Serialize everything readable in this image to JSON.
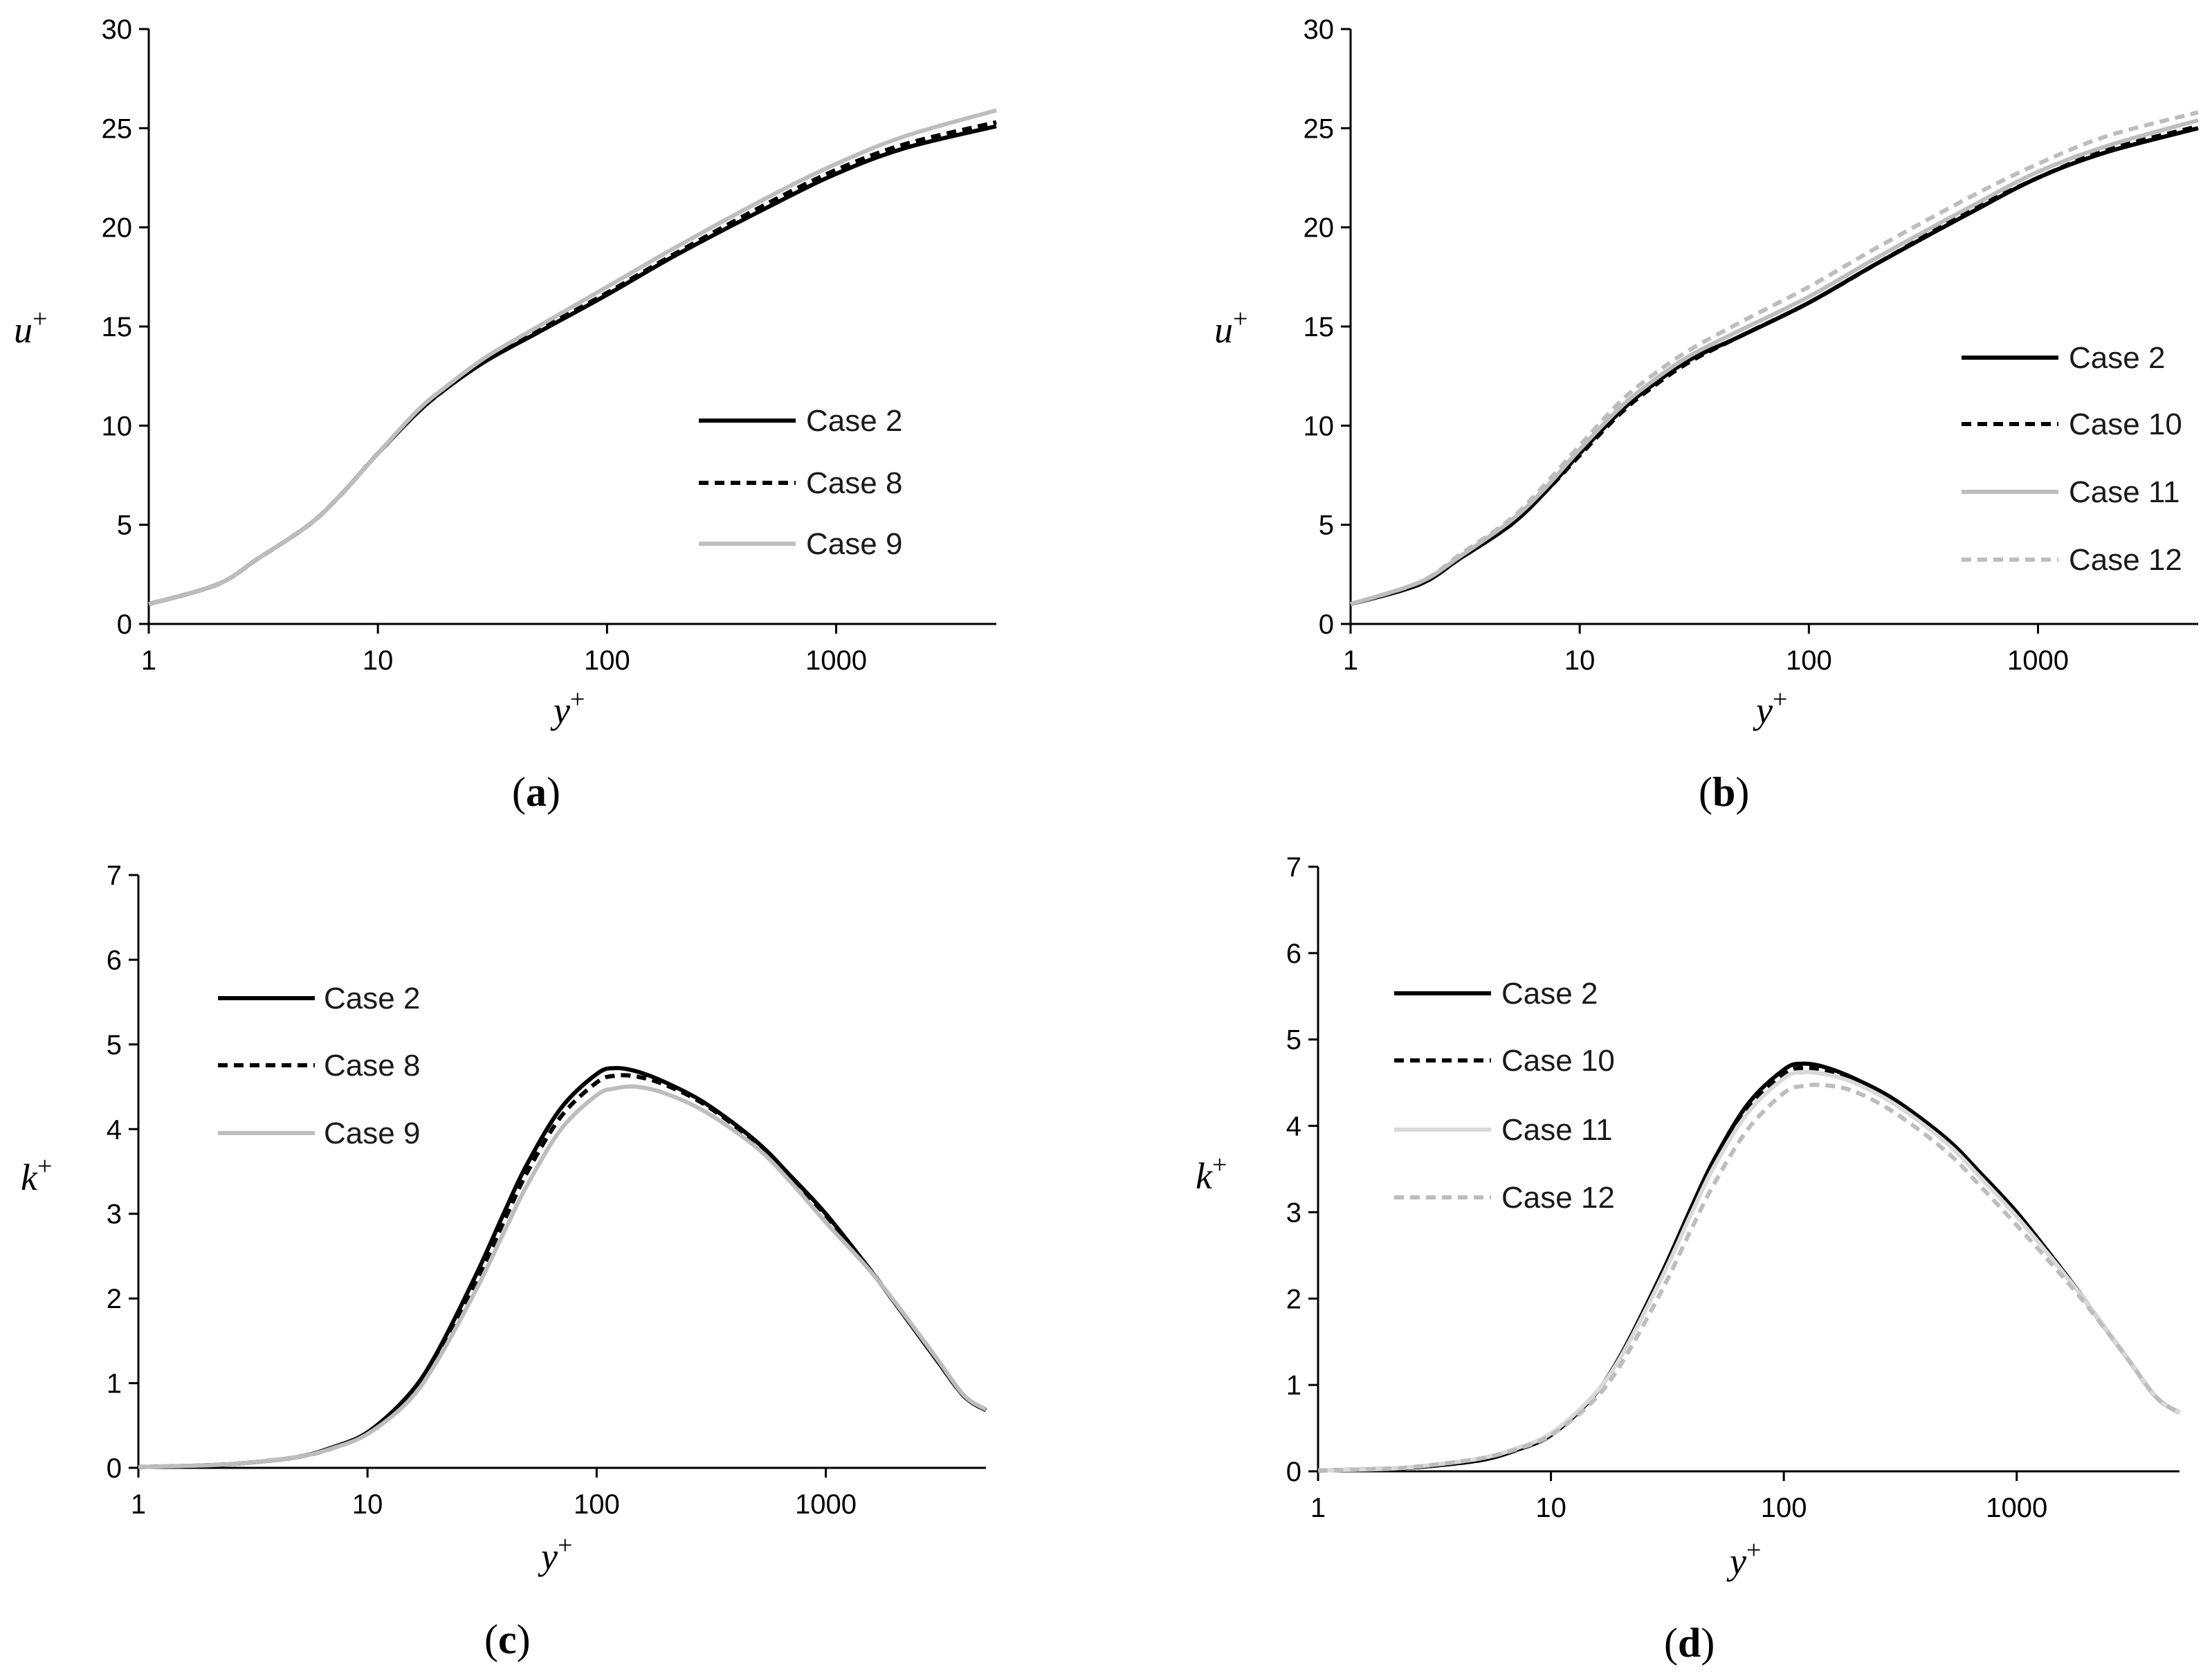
{
  "figure": {
    "panels": [
      "a",
      "b",
      "c",
      "d"
    ]
  },
  "colors": {
    "black": "#000000",
    "gray": "#bdbdbd",
    "light_gray": "#d9d9d9"
  },
  "chart_data": [
    {
      "id": "a",
      "type": "line",
      "panel_label": {
        "open": "(",
        "letter": "a",
        "close": ")"
      },
      "xlabel": {
        "main": "y",
        "sup": "+"
      },
      "ylabel": {
        "main": "u",
        "sup": "+"
      },
      "xscale": "log",
      "xlim": [
        1,
        5000
      ],
      "ylim": [
        0,
        30
      ],
      "xticks": [
        "1",
        "10",
        "100",
        "1000"
      ],
      "xtick_values": [
        1,
        10,
        100,
        1000
      ],
      "yticks": [
        "0",
        "5",
        "10",
        "15",
        "20",
        "25",
        "30"
      ],
      "ytick_values": [
        0,
        5,
        10,
        15,
        20,
        25,
        30
      ],
      "legend_position": "center-right",
      "series": [
        {
          "name": "Case 2",
          "color": "#000000",
          "dash": "solid",
          "x": [
            1,
            2,
            3,
            5,
            7,
            10,
            15,
            20,
            30,
            50,
            100,
            200,
            500,
            1000,
            2000,
            5000
          ],
          "y": [
            1.0,
            2.0,
            3.3,
            5.0,
            6.6,
            8.6,
            10.7,
            11.9,
            13.3,
            14.7,
            16.6,
            18.6,
            21.0,
            22.7,
            24.0,
            25.1
          ]
        },
        {
          "name": "Case 8",
          "color": "#000000",
          "dash": "dashed",
          "x": [
            1,
            2,
            3,
            5,
            7,
            10,
            15,
            20,
            30,
            50,
            100,
            200,
            500,
            1000,
            2000,
            5000
          ],
          "y": [
            1.0,
            2.0,
            3.3,
            5.0,
            6.6,
            8.6,
            10.7,
            11.9,
            13.4,
            14.8,
            16.7,
            18.7,
            21.2,
            22.9,
            24.2,
            25.3
          ]
        },
        {
          "name": "Case 9",
          "color": "#bdbdbd",
          "dash": "solid",
          "x": [
            1,
            2,
            3,
            5,
            7,
            10,
            15,
            20,
            30,
            50,
            100,
            200,
            500,
            1000,
            2000,
            5000
          ],
          "y": [
            1.0,
            2.0,
            3.3,
            5.0,
            6.6,
            8.6,
            10.8,
            12.0,
            13.5,
            15.0,
            17.0,
            19.0,
            21.5,
            23.2,
            24.6,
            25.9
          ]
        }
      ]
    },
    {
      "id": "b",
      "type": "line",
      "panel_label": {
        "open": "(",
        "letter": "b",
        "close": ")"
      },
      "xlabel": {
        "main": "y",
        "sup": "+"
      },
      "ylabel": {
        "main": "u",
        "sup": "+"
      },
      "xscale": "log",
      "xlim": [
        1,
        5000
      ],
      "ylim": [
        0,
        30
      ],
      "xticks": [
        "1",
        "10",
        "100",
        "1000"
      ],
      "xtick_values": [
        1,
        10,
        100,
        1000
      ],
      "yticks": [
        "0",
        "5",
        "10",
        "15",
        "20",
        "25",
        "30"
      ],
      "ytick_values": [
        0,
        5,
        10,
        15,
        20,
        25,
        30
      ],
      "legend_position": "right",
      "series": [
        {
          "name": "Case 2",
          "color": "#000000",
          "dash": "solid",
          "x": [
            1,
            2,
            3,
            5,
            7,
            10,
            15,
            20,
            30,
            50,
            100,
            200,
            500,
            1000,
            2000,
            5000
          ],
          "y": [
            1.0,
            2.0,
            3.3,
            5.0,
            6.6,
            8.6,
            10.7,
            11.9,
            13.3,
            14.5,
            16.2,
            18.2,
            20.7,
            22.5,
            23.8,
            25.0
          ]
        },
        {
          "name": "Case 10",
          "color": "#000000",
          "dash": "dashed",
          "x": [
            1,
            2,
            3,
            5,
            7,
            10,
            15,
            20,
            30,
            50,
            100,
            200,
            500,
            1000,
            2000,
            5000
          ],
          "y": [
            1.0,
            2.0,
            3.3,
            5.0,
            6.6,
            8.5,
            10.6,
            11.8,
            13.2,
            14.5,
            16.2,
            18.2,
            20.8,
            22.5,
            23.9,
            25.1
          ]
        },
        {
          "name": "Case 11",
          "color": "#bdbdbd",
          "dash": "solid",
          "x": [
            1,
            2,
            3,
            5,
            7,
            10,
            15,
            20,
            30,
            50,
            100,
            200,
            500,
            1000,
            2000,
            5000
          ],
          "y": [
            1.0,
            2.1,
            3.4,
            5.2,
            6.8,
            8.8,
            10.9,
            12.1,
            13.5,
            14.8,
            16.5,
            18.5,
            21.0,
            22.8,
            24.1,
            25.4
          ]
        },
        {
          "name": "Case 12",
          "color": "#bdbdbd",
          "dash": "dashed",
          "x": [
            1,
            2,
            3,
            5,
            7,
            10,
            15,
            20,
            30,
            50,
            100,
            200,
            500,
            1000,
            2000,
            5000
          ],
          "y": [
            1.0,
            2.1,
            3.5,
            5.3,
            7.0,
            9.0,
            11.2,
            12.4,
            13.8,
            15.2,
            17.0,
            19.0,
            21.5,
            23.2,
            24.6,
            25.8
          ]
        }
      ]
    },
    {
      "id": "c",
      "type": "line",
      "panel_label": {
        "open": "(",
        "letter": "c",
        "close": ")"
      },
      "xlabel": {
        "main": "y",
        "sup": "+"
      },
      "ylabel": {
        "main": "k",
        "sup": "+"
      },
      "xscale": "log",
      "xlim": [
        1,
        5000
      ],
      "ylim": [
        0,
        7
      ],
      "xticks": [
        "1",
        "10",
        "100",
        "1000"
      ],
      "xtick_values": [
        1,
        10,
        100,
        1000
      ],
      "yticks": [
        "0",
        "1",
        "2",
        "3",
        "4",
        "5",
        "6",
        "7"
      ],
      "ytick_values": [
        0,
        1,
        2,
        3,
        4,
        5,
        6,
        7
      ],
      "legend_position": "top-left",
      "series": [
        {
          "name": "Case 2",
          "color": "#000000",
          "dash": "solid",
          "x": [
            1,
            2,
            3,
            5,
            7,
            10,
            15,
            20,
            30,
            40,
            50,
            70,
            100,
            120,
            150,
            200,
            300,
            500,
            700,
            1000,
            1500,
            2000,
            3000,
            4000,
            5000
          ],
          "y": [
            0.01,
            0.03,
            0.06,
            0.13,
            0.24,
            0.42,
            0.85,
            1.35,
            2.3,
            3.05,
            3.6,
            4.25,
            4.65,
            4.72,
            4.68,
            4.55,
            4.3,
            3.85,
            3.45,
            3.0,
            2.4,
            1.95,
            1.3,
            0.85,
            0.68
          ]
        },
        {
          "name": "Case 8",
          "color": "#000000",
          "dash": "dashed",
          "x": [
            1,
            2,
            3,
            5,
            7,
            10,
            15,
            20,
            30,
            40,
            50,
            70,
            100,
            120,
            150,
            200,
            300,
            500,
            700,
            1000,
            1500,
            2000,
            3000,
            4000,
            5000
          ],
          "y": [
            0.01,
            0.03,
            0.06,
            0.13,
            0.23,
            0.41,
            0.82,
            1.3,
            2.22,
            2.95,
            3.5,
            4.15,
            4.55,
            4.63,
            4.62,
            4.52,
            4.28,
            3.83,
            3.43,
            2.98,
            2.4,
            1.95,
            1.3,
            0.85,
            0.68
          ]
        },
        {
          "name": "Case 9",
          "color": "#bdbdbd",
          "dash": "solid",
          "x": [
            1,
            2,
            3,
            5,
            7,
            10,
            15,
            20,
            30,
            40,
            50,
            70,
            100,
            120,
            150,
            200,
            300,
            500,
            700,
            1000,
            1500,
            2000,
            3000,
            4000,
            5000
          ],
          "y": [
            0.01,
            0.03,
            0.06,
            0.13,
            0.23,
            0.4,
            0.78,
            1.25,
            2.12,
            2.82,
            3.35,
            4.0,
            4.4,
            4.48,
            4.5,
            4.42,
            4.2,
            3.78,
            3.38,
            2.9,
            2.38,
            1.96,
            1.32,
            0.86,
            0.69
          ]
        }
      ]
    },
    {
      "id": "d",
      "type": "line",
      "panel_label": {
        "open": "(",
        "letter": "d",
        "close": ")"
      },
      "xlabel": {
        "main": "y",
        "sup": "+"
      },
      "ylabel": {
        "main": "k",
        "sup": "+"
      },
      "xscale": "log",
      "xlim": [
        1,
        5000
      ],
      "ylim": [
        0,
        7
      ],
      "xticks": [
        "1",
        "10",
        "100",
        "1000"
      ],
      "xtick_values": [
        1,
        10,
        100,
        1000
      ],
      "yticks": [
        "0",
        "1",
        "2",
        "3",
        "4",
        "5",
        "6",
        "7"
      ],
      "ytick_values": [
        0,
        1,
        2,
        3,
        4,
        5,
        6,
        7
      ],
      "legend_position": "top-left",
      "series": [
        {
          "name": "Case 2",
          "color": "#000000",
          "dash": "solid",
          "x": [
            1,
            2,
            3,
            5,
            7,
            10,
            15,
            20,
            30,
            40,
            50,
            70,
            100,
            120,
            150,
            200,
            300,
            500,
            700,
            1000,
            1500,
            2000,
            3000,
            4000,
            5000
          ],
          "y": [
            0.01,
            0.03,
            0.06,
            0.13,
            0.24,
            0.42,
            0.85,
            1.35,
            2.3,
            3.05,
            3.6,
            4.25,
            4.65,
            4.72,
            4.68,
            4.55,
            4.3,
            3.85,
            3.45,
            3.0,
            2.4,
            1.95,
            1.3,
            0.85,
            0.68
          ]
        },
        {
          "name": "Case 10",
          "color": "#000000",
          "dash": "dashed",
          "x": [
            1,
            2,
            3,
            5,
            7,
            10,
            15,
            20,
            30,
            40,
            50,
            70,
            100,
            120,
            150,
            200,
            300,
            500,
            700,
            1000,
            1500,
            2000,
            3000,
            4000,
            5000
          ],
          "y": [
            0.01,
            0.03,
            0.06,
            0.13,
            0.24,
            0.42,
            0.84,
            1.33,
            2.27,
            3.01,
            3.56,
            4.2,
            4.6,
            4.67,
            4.64,
            4.52,
            4.27,
            3.82,
            3.42,
            2.98,
            2.4,
            1.95,
            1.3,
            0.85,
            0.68
          ]
        },
        {
          "name": "Case 11",
          "color": "#d9d9d9",
          "dash": "solid",
          "x": [
            1,
            2,
            3,
            5,
            7,
            10,
            15,
            20,
            30,
            40,
            50,
            70,
            100,
            120,
            150,
            200,
            300,
            500,
            700,
            1000,
            1500,
            2000,
            3000,
            4000,
            5000
          ],
          "y": [
            0.01,
            0.03,
            0.07,
            0.15,
            0.26,
            0.44,
            0.86,
            1.33,
            2.25,
            2.98,
            3.52,
            4.15,
            4.55,
            4.62,
            4.6,
            4.5,
            4.25,
            3.8,
            3.4,
            2.95,
            2.38,
            1.95,
            1.3,
            0.85,
            0.68
          ]
        },
        {
          "name": "Case 12",
          "color": "#bdbdbd",
          "dash": "dashed",
          "x": [
            1,
            2,
            3,
            5,
            7,
            10,
            15,
            20,
            30,
            40,
            50,
            70,
            100,
            120,
            150,
            200,
            300,
            500,
            700,
            1000,
            1500,
            2000,
            3000,
            4000,
            5000
          ],
          "y": [
            0.01,
            0.03,
            0.07,
            0.15,
            0.25,
            0.42,
            0.8,
            1.24,
            2.1,
            2.8,
            3.32,
            3.96,
            4.38,
            4.46,
            4.47,
            4.4,
            4.15,
            3.7,
            3.3,
            2.85,
            2.32,
            1.92,
            1.3,
            0.85,
            0.68
          ]
        }
      ]
    }
  ]
}
